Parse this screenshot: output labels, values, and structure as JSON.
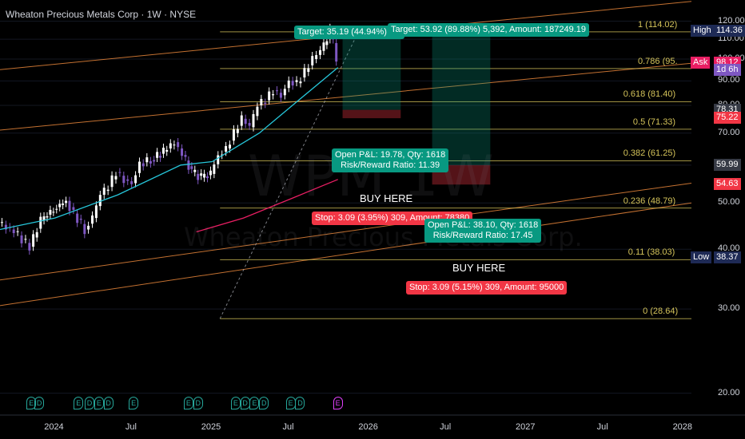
{
  "header": {
    "title": "Wheaton Precious Metals Corp · 1W · NYSE"
  },
  "watermark": {
    "symbol": "WPM 1W",
    "name": "Wheaton Precious Metals Corp."
  },
  "colors": {
    "up": "#089981",
    "down": "#f23645",
    "candle_up": "#ffffff",
    "candle_down": "#7e57c2",
    "ma_fast": "#26c6da",
    "ma_slow": "#e91e63",
    "fib": "#d4c35a",
    "channel": "#e6853a"
  },
  "chart_data": {
    "type": "candlestick",
    "title": "Wheaton Precious Metals Corp · 1W · NYSE",
    "y_axis": {
      "ticks": [
        20,
        30,
        40,
        50,
        60,
        70,
        80,
        90,
        100,
        110,
        120
      ],
      "ylim": [
        18,
        124
      ],
      "scale": "log"
    },
    "x_axis": {
      "ticks": [
        "2024",
        "Jul",
        "2025",
        "Jul",
        "2026",
        "Jul",
        "2027",
        "Jul",
        "2028"
      ],
      "tick_years": [
        2024.0,
        2024.5,
        2025.0,
        2025.5,
        2026.0,
        2026.5,
        2027.0,
        2027.5,
        2028.0
      ],
      "xlim": [
        2023.65,
        2028.05
      ]
    },
    "price_series": [
      [
        2023.65,
        45.5
      ],
      [
        2023.75,
        43.5
      ],
      [
        2023.85,
        40.5
      ],
      [
        2023.92,
        46.0
      ],
      [
        2024.0,
        48.5
      ],
      [
        2024.08,
        50.5
      ],
      [
        2024.13,
        47.5
      ],
      [
        2024.2,
        44.0
      ],
      [
        2024.25,
        46.5
      ],
      [
        2024.3,
        52.0
      ],
      [
        2024.35,
        54.0
      ],
      [
        2024.4,
        58.0
      ],
      [
        2024.45,
        56.0
      ],
      [
        2024.5,
        55.0
      ],
      [
        2024.55,
        60.5
      ],
      [
        2024.62,
        61.5
      ],
      [
        2024.7,
        64.0
      ],
      [
        2024.77,
        67.0
      ],
      [
        2024.82,
        63.0
      ],
      [
        2024.88,
        58.0
      ],
      [
        2024.94,
        56.5
      ],
      [
        2025.0,
        57.5
      ],
      [
        2025.05,
        63.0
      ],
      [
        2025.1,
        65.0
      ],
      [
        2025.15,
        70.0
      ],
      [
        2025.2,
        75.0
      ],
      [
        2025.25,
        72.0
      ],
      [
        2025.3,
        80.0
      ],
      [
        2025.35,
        82.0
      ],
      [
        2025.4,
        86.0
      ],
      [
        2025.45,
        84.0
      ],
      [
        2025.5,
        90.0
      ],
      [
        2025.55,
        89.0
      ],
      [
        2025.6,
        94.0
      ],
      [
        2025.65,
        100.0
      ],
      [
        2025.7,
        104.0
      ],
      [
        2025.74,
        110.0
      ],
      [
        2025.76,
        114.0
      ],
      [
        2025.78,
        108.0
      ],
      [
        2025.8,
        98.12
      ]
    ],
    "moving_averages": [
      {
        "color": "#26c6da",
        "points": [
          [
            2023.65,
            44.0
          ],
          [
            2024.0,
            46.5
          ],
          [
            2024.4,
            52.0
          ],
          [
            2024.8,
            60.0
          ],
          [
            2025.0,
            61.0
          ],
          [
            2025.3,
            70.0
          ],
          [
            2025.55,
            82.0
          ],
          [
            2025.8,
            96.0
          ]
        ]
      },
      {
        "color": "#e91e63",
        "points": [
          [
            2024.9,
            43.5
          ],
          [
            2025.2,
            46.5
          ],
          [
            2025.5,
            51.0
          ],
          [
            2025.8,
            56.0
          ]
        ]
      }
    ],
    "fibonacci": {
      "x_start": 2025.05,
      "levels": [
        {
          "label": "1 (114.02)",
          "price": 114.02
        },
        {
          "label": "0.786 (95.",
          "price": 95.5
        },
        {
          "label": "0.618 (81.40)",
          "price": 81.4
        },
        {
          "label": "0.5 (71.33)",
          "price": 71.33
        },
        {
          "label": "0.382 (61.25)",
          "price": 61.25
        },
        {
          "label": "0.236 (48.79)",
          "price": 48.79
        },
        {
          "label": "0.11 (38.03)",
          "price": 38.03
        },
        {
          "label": "0 (28.64)",
          "price": 28.64
        }
      ]
    },
    "price_labels": [
      {
        "label": "High",
        "value": "114.36",
        "price": 114.36,
        "color": "#1e2a55"
      },
      {
        "label": "Ask",
        "value": "98.12",
        "price": 98.12,
        "color": "#e91e63"
      },
      {
        "label": "",
        "value": "1d 6h",
        "price": 94.8,
        "color": "#7e57c2"
      },
      {
        "label": "",
        "value": "78.31",
        "price": 78.31,
        "color": "#363a45"
      },
      {
        "label": "",
        "value": "75.22",
        "price": 75.22,
        "color": "#f23645"
      },
      {
        "label": "",
        "value": "59.99",
        "price": 59.99,
        "color": "#363a45"
      },
      {
        "label": "",
        "value": "54.63",
        "price": 54.63,
        "color": "#f23645"
      },
      {
        "label": "Low",
        "value": "38.37",
        "price": 38.37,
        "color": "#1e2a55"
      }
    ],
    "positions": [
      {
        "target_label": "Target: 35.19 (44.94%) 3,5",
        "pl_label": "Open P&L: 19.78, Qty: 1618",
        "rr_label": "Risk/Reward Ratio: 11.39",
        "buy_label": "BUY HERE",
        "stop_label": "Stop: 3.09 (3.95%) 309, Amount: 78380"
      },
      {
        "target_label": "Target: 53.92 (89.88%) 5,392, Amount: 187249.19",
        "pl_label": "Open P&L: 38.10, Qty: 1618",
        "rr_label": "Risk/Reward Ratio: 17.45",
        "buy_label": "BUY HERE",
        "stop_label": "Stop: 3.09 (5.15%) 309, Amount: 95000"
      }
    ],
    "earnings_markers": [
      {
        "year": 2023.85,
        "label": "E"
      },
      {
        "year": 2023.9,
        "label": "D"
      },
      {
        "year": 2024.15,
        "label": "E"
      },
      {
        "year": 2024.22,
        "label": "D"
      },
      {
        "year": 2024.28,
        "label": "E"
      },
      {
        "year": 2024.34,
        "label": "D"
      },
      {
        "year": 2024.5,
        "label": "E"
      },
      {
        "year": 2024.85,
        "label": "E"
      },
      {
        "year": 2024.91,
        "label": "D"
      },
      {
        "year": 2025.15,
        "label": "E"
      },
      {
        "year": 2025.21,
        "label": "D"
      },
      {
        "year": 2025.27,
        "label": "E"
      },
      {
        "year": 2025.33,
        "label": "D"
      },
      {
        "year": 2025.5,
        "label": "E"
      },
      {
        "year": 2025.56,
        "label": "D"
      },
      {
        "year": 2025.8,
        "label": "E",
        "future": true
      }
    ]
  }
}
